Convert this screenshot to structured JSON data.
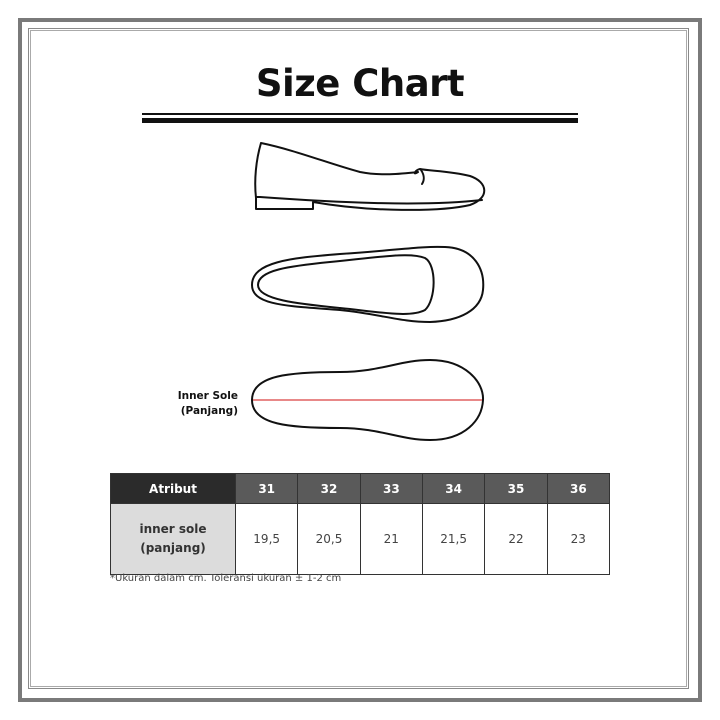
{
  "title": "Size Chart",
  "illustration": {
    "inner_sole_label_line1": "Inner Sole",
    "inner_sole_label_line2": "(Panjang)",
    "measure_line_color": "#e06060"
  },
  "table": {
    "header": [
      "Atribut",
      "31",
      "32",
      "33",
      "34",
      "35",
      "36"
    ],
    "row": {
      "label_line1": "inner sole",
      "label_line2": "(panjang)",
      "values": [
        "19,5",
        "20,5",
        "21",
        "21,5",
        "22",
        "23"
      ]
    }
  },
  "note": "*Ukuran dalam cm. Toleransi ukuran ± 1-2 cm"
}
